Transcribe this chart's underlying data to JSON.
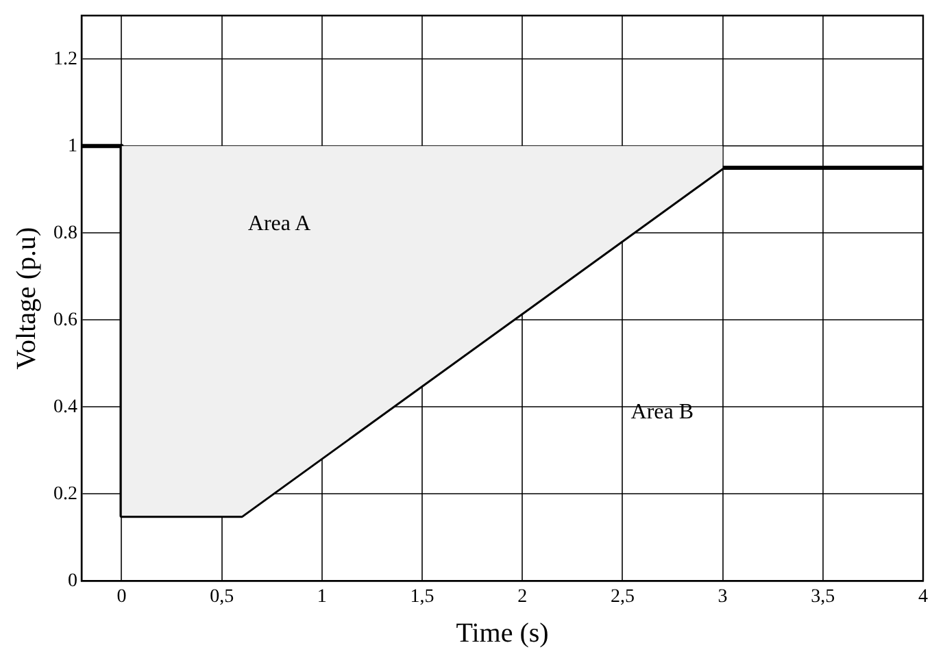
{
  "chart_data": {
    "type": "line",
    "xlabel": "Time (s)",
    "ylabel": "Voltage (p.u)",
    "series": [
      {
        "color": "#000000",
        "x": [
          -0.2,
          0,
          0,
          0.6,
          3,
          4
        ],
        "values": [
          1,
          1,
          0.15,
          0.15,
          0.95,
          0.95
        ],
        "lower": [
          null,
          1,
          0.15,
          0.15,
          0.95,
          null
        ],
        "upper": [
          null,
          1,
          1,
          1,
          1,
          null
        ]
      }
    ],
    "xlim": [
      -0.2,
      4
    ],
    "xticks": [
      0,
      {
        "value": 0.5,
        "label": "0,5"
      },
      1,
      {
        "value": 1.5,
        "label": "1,5"
      },
      2,
      {
        "value": 2.5,
        "label": "2,5"
      },
      3,
      {
        "value": 3.5,
        "label": "3,5"
      },
      4
    ],
    "ylim": [
      0,
      1.3
    ],
    "yticks": [
      0,
      0.2,
      0.4,
      0.6,
      0.8,
      1,
      1.2
    ],
    "annotations": [
      "Area A",
      "Area B"
    ],
    "grid": true,
    "legend": false,
    "marker": "none",
    "line_style": "solid"
  }
}
